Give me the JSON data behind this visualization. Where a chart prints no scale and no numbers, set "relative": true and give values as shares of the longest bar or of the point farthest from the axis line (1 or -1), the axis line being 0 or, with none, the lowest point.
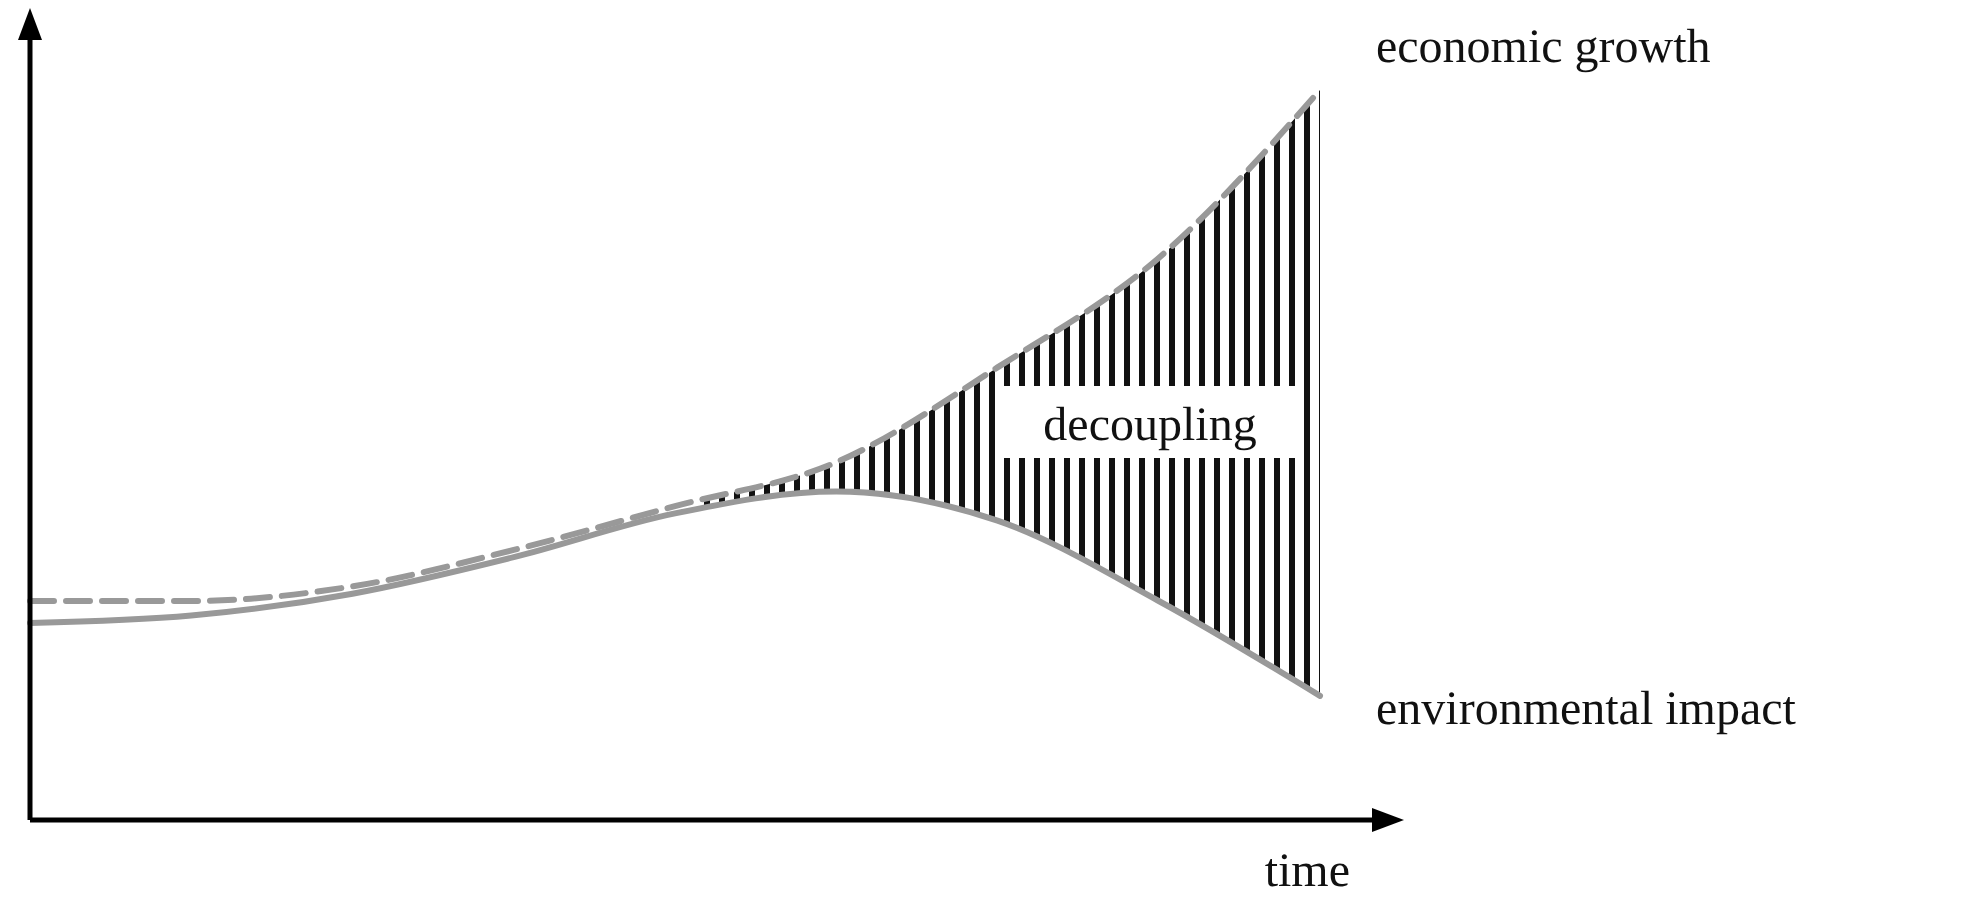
{
  "chart_data": {
    "type": "line",
    "relative": true,
    "xlabel": "time",
    "categories": [
      null,
      null,
      null,
      null,
      null,
      null,
      null,
      null,
      null
    ],
    "series": [
      {
        "name": "economic growth",
        "color": "#999999",
        "line_style": "dashed",
        "values": [
          0.3,
          0.3,
          0.32,
          0.37,
          0.43,
          0.49,
          0.62,
          0.77,
          1.0
        ]
      },
      {
        "name": "environmental impact",
        "color": "#999999",
        "line_style": "solid",
        "values": [
          0.27,
          0.28,
          0.31,
          0.36,
          0.42,
          0.45,
          0.41,
          0.3,
          0.17
        ]
      }
    ],
    "annotations": [
      "decoupling"
    ],
    "legend": false,
    "marker": "none"
  }
}
